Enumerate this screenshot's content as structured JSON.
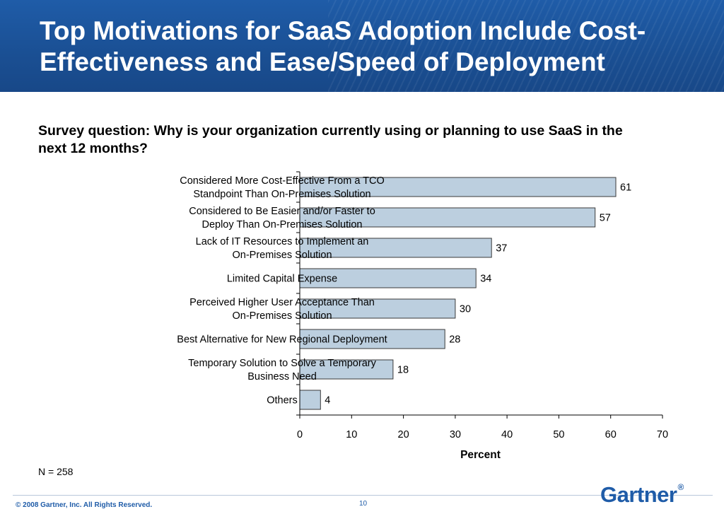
{
  "header": {
    "title": "Top Motivations for SaaS Adoption Include Cost-Effectiveness and Ease/Speed of Deployment"
  },
  "subtitle": "Survey question: Why is your organization currently using or planning to use SaaS in the next 12 months?",
  "footer": {
    "n_note": "N = 258",
    "copyright": "© 2008 Gartner, Inc. All Rights Reserved.",
    "page_number": "10",
    "logo": "Gartner",
    "logo_mark": "®"
  },
  "colors": {
    "header_bg": "#1a4f93",
    "bar_fill": "#bccfdf",
    "bar_stroke": "#3a3a3a",
    "brand": "#1f5ca8"
  },
  "chart_data": {
    "type": "bar",
    "orientation": "horizontal",
    "categories": [
      [
        "Considered More Cost-Effective From a TCO",
        "Standpoint Than On-Premises Solution"
      ],
      [
        "Considered to Be Easier and/or Faster to",
        "Deploy Than On-Premises Solution"
      ],
      [
        "Lack of IT Resources to Implement an",
        "On-Premises Solution"
      ],
      [
        "Limited Capital Expense"
      ],
      [
        "Perceived Higher User Acceptance Than",
        "On-Premises Solution"
      ],
      [
        "Best Alternative for New Regional Deployment"
      ],
      [
        "Temporary Solution to Solve a Temporary",
        "Business Need"
      ],
      [
        "Others"
      ]
    ],
    "values": [
      61,
      57,
      37,
      34,
      30,
      28,
      18,
      4
    ],
    "xlabel": "Percent",
    "ylabel": "",
    "xlim": [
      0,
      70
    ],
    "xticks": [
      0,
      10,
      20,
      30,
      40,
      50,
      60,
      70
    ],
    "grid": false,
    "data_labels": true
  }
}
